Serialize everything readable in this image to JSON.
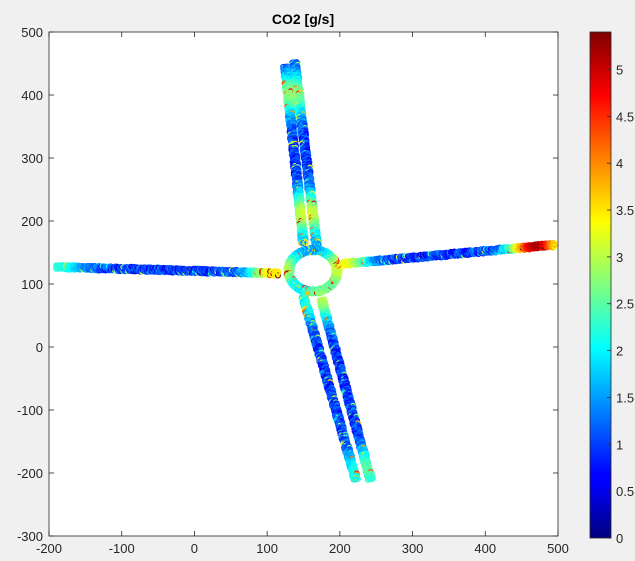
{
  "chart_data": {
    "type": "scatter",
    "title": "CO2 [g/s]",
    "xlabel": "",
    "ylabel": "",
    "xlim": [
      -200,
      500
    ],
    "ylim": [
      -300,
      500
    ],
    "x_ticks": [
      -200,
      -100,
      0,
      100,
      200,
      300,
      400,
      500
    ],
    "y_ticks": [
      -300,
      -200,
      -100,
      0,
      100,
      200,
      300,
      400,
      500
    ],
    "colorbar": {
      "colormap": "jet",
      "range": [
        0,
        5.4
      ],
      "ticks": [
        0,
        0.5,
        1,
        1.5,
        2,
        2.5,
        3,
        3.5,
        4,
        4.5,
        5
      ],
      "tick_labels": [
        "0",
        "0.5",
        "1",
        "1.5",
        "2",
        "2.5",
        "3",
        "3.5",
        "4",
        "4.5",
        "5"
      ]
    },
    "grid": false,
    "roads": [
      {
        "name": "west",
        "x0": -190,
        "y0": 127,
        "x1": 115,
        "y1": 117
      },
      {
        "name": "east",
        "x0": 205,
        "y0": 132,
        "x1": 495,
        "y1": 162
      },
      {
        "name": "north_1",
        "x0": 125,
        "y0": 445,
        "x1": 150,
        "y1": 165
      },
      {
        "name": "north_2",
        "x0": 138,
        "y0": 452,
        "x1": 168,
        "y1": 162
      },
      {
        "name": "south_1",
        "x0": 150,
        "y0": 80,
        "x1": 222,
        "y1": -210
      },
      {
        "name": "south_2",
        "x0": 175,
        "y0": 75,
        "x1": 242,
        "y1": -210
      }
    ],
    "roundabout": {
      "cx": 163,
      "cy": 121,
      "r": 33
    },
    "hotspots": [
      {
        "x": 470,
        "y": 163,
        "value": 5.2
      },
      {
        "x": 110,
        "y": 120,
        "value": 3.5
      },
      {
        "x": 205,
        "y": 130,
        "value": 3.4
      },
      {
        "x": 155,
        "y": 210,
        "value": 3.2
      },
      {
        "x": 180,
        "y": 75,
        "value": 3.0
      },
      {
        "x": 135,
        "y": 400,
        "value": 2.8
      },
      {
        "x": -185,
        "y": 127,
        "value": 2.2
      },
      {
        "x": 238,
        "y": -195,
        "value": 2.5
      }
    ],
    "baseline_value": 1.0
  }
}
